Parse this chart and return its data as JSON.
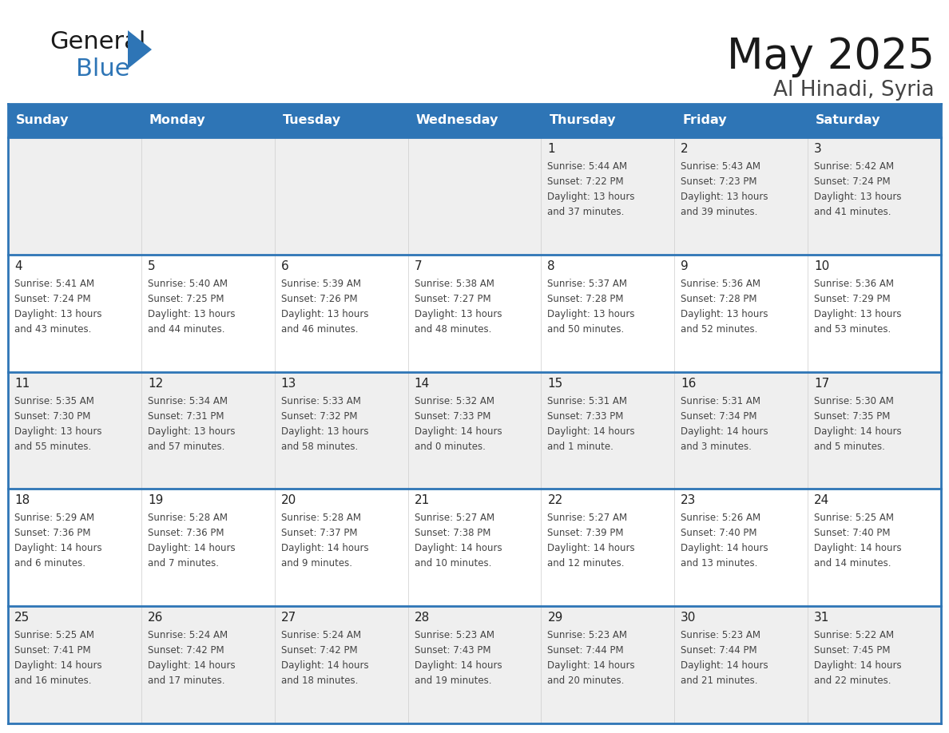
{
  "title": "May 2025",
  "subtitle": "Al Hinadi, Syria",
  "header_color": "#2E75B6",
  "header_text_color": "#FFFFFF",
  "cell_bg_even": "#EFEFEF",
  "cell_bg_odd": "#FFFFFF",
  "border_color": "#2E75B6",
  "text_color": "#333333",
  "day_names": [
    "Sunday",
    "Monday",
    "Tuesday",
    "Wednesday",
    "Thursday",
    "Friday",
    "Saturday"
  ],
  "days_data": [
    {
      "day": "",
      "lines": []
    },
    {
      "day": "",
      "lines": []
    },
    {
      "day": "",
      "lines": []
    },
    {
      "day": "",
      "lines": []
    },
    {
      "day": "1",
      "lines": [
        "Sunrise: 5:44 AM",
        "Sunset: 7:22 PM",
        "Daylight: 13 hours",
        "and 37 minutes."
      ]
    },
    {
      "day": "2",
      "lines": [
        "Sunrise: 5:43 AM",
        "Sunset: 7:23 PM",
        "Daylight: 13 hours",
        "and 39 minutes."
      ]
    },
    {
      "day": "3",
      "lines": [
        "Sunrise: 5:42 AM",
        "Sunset: 7:24 PM",
        "Daylight: 13 hours",
        "and 41 minutes."
      ]
    },
    {
      "day": "4",
      "lines": [
        "Sunrise: 5:41 AM",
        "Sunset: 7:24 PM",
        "Daylight: 13 hours",
        "and 43 minutes."
      ]
    },
    {
      "day": "5",
      "lines": [
        "Sunrise: 5:40 AM",
        "Sunset: 7:25 PM",
        "Daylight: 13 hours",
        "and 44 minutes."
      ]
    },
    {
      "day": "6",
      "lines": [
        "Sunrise: 5:39 AM",
        "Sunset: 7:26 PM",
        "Daylight: 13 hours",
        "and 46 minutes."
      ]
    },
    {
      "day": "7",
      "lines": [
        "Sunrise: 5:38 AM",
        "Sunset: 7:27 PM",
        "Daylight: 13 hours",
        "and 48 minutes."
      ]
    },
    {
      "day": "8",
      "lines": [
        "Sunrise: 5:37 AM",
        "Sunset: 7:28 PM",
        "Daylight: 13 hours",
        "and 50 minutes."
      ]
    },
    {
      "day": "9",
      "lines": [
        "Sunrise: 5:36 AM",
        "Sunset: 7:28 PM",
        "Daylight: 13 hours",
        "and 52 minutes."
      ]
    },
    {
      "day": "10",
      "lines": [
        "Sunrise: 5:36 AM",
        "Sunset: 7:29 PM",
        "Daylight: 13 hours",
        "and 53 minutes."
      ]
    },
    {
      "day": "11",
      "lines": [
        "Sunrise: 5:35 AM",
        "Sunset: 7:30 PM",
        "Daylight: 13 hours",
        "and 55 minutes."
      ]
    },
    {
      "day": "12",
      "lines": [
        "Sunrise: 5:34 AM",
        "Sunset: 7:31 PM",
        "Daylight: 13 hours",
        "and 57 minutes."
      ]
    },
    {
      "day": "13",
      "lines": [
        "Sunrise: 5:33 AM",
        "Sunset: 7:32 PM",
        "Daylight: 13 hours",
        "and 58 minutes."
      ]
    },
    {
      "day": "14",
      "lines": [
        "Sunrise: 5:32 AM",
        "Sunset: 7:33 PM",
        "Daylight: 14 hours",
        "and 0 minutes."
      ]
    },
    {
      "day": "15",
      "lines": [
        "Sunrise: 5:31 AM",
        "Sunset: 7:33 PM",
        "Daylight: 14 hours",
        "and 1 minute."
      ]
    },
    {
      "day": "16",
      "lines": [
        "Sunrise: 5:31 AM",
        "Sunset: 7:34 PM",
        "Daylight: 14 hours",
        "and 3 minutes."
      ]
    },
    {
      "day": "17",
      "lines": [
        "Sunrise: 5:30 AM",
        "Sunset: 7:35 PM",
        "Daylight: 14 hours",
        "and 5 minutes."
      ]
    },
    {
      "day": "18",
      "lines": [
        "Sunrise: 5:29 AM",
        "Sunset: 7:36 PM",
        "Daylight: 14 hours",
        "and 6 minutes."
      ]
    },
    {
      "day": "19",
      "lines": [
        "Sunrise: 5:28 AM",
        "Sunset: 7:36 PM",
        "Daylight: 14 hours",
        "and 7 minutes."
      ]
    },
    {
      "day": "20",
      "lines": [
        "Sunrise: 5:28 AM",
        "Sunset: 7:37 PM",
        "Daylight: 14 hours",
        "and 9 minutes."
      ]
    },
    {
      "day": "21",
      "lines": [
        "Sunrise: 5:27 AM",
        "Sunset: 7:38 PM",
        "Daylight: 14 hours",
        "and 10 minutes."
      ]
    },
    {
      "day": "22",
      "lines": [
        "Sunrise: 5:27 AM",
        "Sunset: 7:39 PM",
        "Daylight: 14 hours",
        "and 12 minutes."
      ]
    },
    {
      "day": "23",
      "lines": [
        "Sunrise: 5:26 AM",
        "Sunset: 7:40 PM",
        "Daylight: 14 hours",
        "and 13 minutes."
      ]
    },
    {
      "day": "24",
      "lines": [
        "Sunrise: 5:25 AM",
        "Sunset: 7:40 PM",
        "Daylight: 14 hours",
        "and 14 minutes."
      ]
    },
    {
      "day": "25",
      "lines": [
        "Sunrise: 5:25 AM",
        "Sunset: 7:41 PM",
        "Daylight: 14 hours",
        "and 16 minutes."
      ]
    },
    {
      "day": "26",
      "lines": [
        "Sunrise: 5:24 AM",
        "Sunset: 7:42 PM",
        "Daylight: 14 hours",
        "and 17 minutes."
      ]
    },
    {
      "day": "27",
      "lines": [
        "Sunrise: 5:24 AM",
        "Sunset: 7:42 PM",
        "Daylight: 14 hours",
        "and 18 minutes."
      ]
    },
    {
      "day": "28",
      "lines": [
        "Sunrise: 5:23 AM",
        "Sunset: 7:43 PM",
        "Daylight: 14 hours",
        "and 19 minutes."
      ]
    },
    {
      "day": "29",
      "lines": [
        "Sunrise: 5:23 AM",
        "Sunset: 7:44 PM",
        "Daylight: 14 hours",
        "and 20 minutes."
      ]
    },
    {
      "day": "30",
      "lines": [
        "Sunrise: 5:23 AM",
        "Sunset: 7:44 PM",
        "Daylight: 14 hours",
        "and 21 minutes."
      ]
    },
    {
      "day": "31",
      "lines": [
        "Sunrise: 5:22 AM",
        "Sunset: 7:45 PM",
        "Daylight: 14 hours",
        "and 22 minutes."
      ]
    }
  ]
}
